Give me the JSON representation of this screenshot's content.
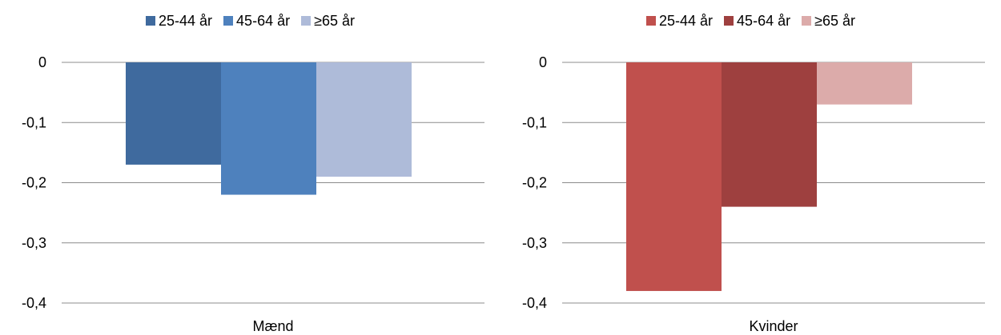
{
  "chart_data": [
    {
      "type": "bar",
      "categories": [
        "Mænd"
      ],
      "series": [
        {
          "name": "25-44 år",
          "values": [
            -0.17
          ],
          "color": "#3f6a9e"
        },
        {
          "name": "45-64 år",
          "values": [
            -0.22
          ],
          "color": "#4e81bd"
        },
        {
          "name": "≥65 år",
          "values": [
            -0.19
          ],
          "color": "#aebbd9"
        }
      ],
      "yticks": [
        "0",
        "-0,1",
        "-0,2",
        "-0,3",
        "-0,4"
      ],
      "ylim": [
        -0.4,
        0
      ],
      "grid": true,
      "legend": "top-center",
      "title": "",
      "xlabel": "",
      "ylabel": ""
    },
    {
      "type": "bar",
      "categories": [
        "Kvinder"
      ],
      "series": [
        {
          "name": "25-44 år",
          "values": [
            -0.38
          ],
          "color": "#c0504d"
        },
        {
          "name": "45-64 år",
          "values": [
            -0.24
          ],
          "color": "#9e403f"
        },
        {
          "name": "≥65 år",
          "values": [
            -0.07
          ],
          "color": "#dcabaa"
        }
      ],
      "yticks": [
        "0",
        "-0,1",
        "-0,2",
        "-0,3",
        "-0,4"
      ],
      "ylim": [
        -0.4,
        0
      ],
      "grid": true,
      "legend": "top-center",
      "title": "",
      "xlabel": "",
      "ylabel": ""
    }
  ]
}
